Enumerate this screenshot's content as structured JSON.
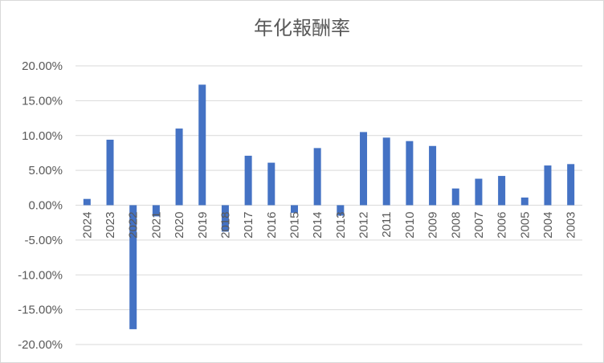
{
  "chart_data": {
    "type": "bar",
    "title": "年化報酬率",
    "xlabel": "",
    "ylabel": "",
    "categories": [
      "2024",
      "2023",
      "2022",
      "2021",
      "2020",
      "2019",
      "2018",
      "2017",
      "2016",
      "2015",
      "2014",
      "2013",
      "2012",
      "2011",
      "2010",
      "2009",
      "2008",
      "2007",
      "2006",
      "2005",
      "2004",
      "2003"
    ],
    "values": [
      0.9,
      9.4,
      -17.8,
      -1.6,
      11.0,
      17.3,
      -3.8,
      7.1,
      6.1,
      -1.1,
      8.2,
      -1.5,
      10.5,
      9.7,
      9.2,
      8.5,
      2.4,
      3.8,
      4.2,
      1.1,
      5.7,
      5.9
    ],
    "ylim": [
      -20,
      20
    ],
    "y_ticks": [
      20,
      15,
      10,
      5,
      0,
      -5,
      -10,
      -15,
      -20
    ],
    "y_tick_labels": [
      "20.00%",
      "15.00%",
      "10.00%",
      "5.00%",
      "0.00%",
      "-5.00%",
      "-10.00%",
      "-15.00%",
      "-20.00%"
    ],
    "grid": true,
    "legend": "none",
    "bar_color": "#4472c4",
    "grid_color": "#d9d9d9"
  }
}
